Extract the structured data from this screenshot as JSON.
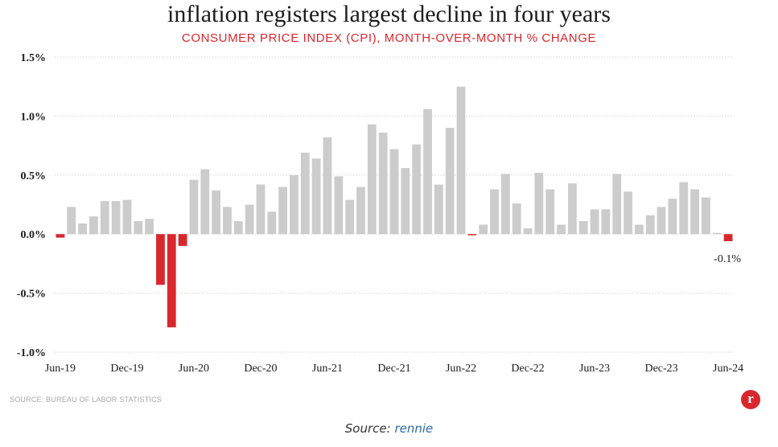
{
  "chart_data": {
    "type": "bar",
    "title": "inflation registers largest decline in four years",
    "subtitle": "CONSUMER PRICE INDEX (CPI), MONTH-OVER-MONTH % CHANGE",
    "xlabel": "",
    "ylabel": "",
    "ylim": [
      -1.0,
      1.5
    ],
    "y_ticks": [
      1.5,
      1.0,
      0.5,
      0.0,
      -0.5,
      -1.0
    ],
    "y_tick_labels": [
      "1.5%",
      "1.0%",
      "0.5%",
      "0.0%",
      "-0.5%",
      "-1.0%"
    ],
    "x_tick_labels": [
      "Jun-19",
      "Dec-19",
      "Jun-20",
      "Dec-20",
      "Jun-21",
      "Dec-21",
      "Jun-22",
      "Dec-22",
      "Jun-23",
      "Dec-23",
      "Jun-24"
    ],
    "grid": true,
    "negative_color": "#d9272e",
    "positive_color": "#cccccc",
    "categories": [
      "Jun-19",
      "Jul-19",
      "Aug-19",
      "Sep-19",
      "Oct-19",
      "Nov-19",
      "Dec-19",
      "Jan-20",
      "Feb-20",
      "Mar-20",
      "Apr-20",
      "May-20",
      "Jun-20",
      "Jul-20",
      "Aug-20",
      "Sep-20",
      "Oct-20",
      "Nov-20",
      "Dec-20",
      "Jan-21",
      "Feb-21",
      "Mar-21",
      "Apr-21",
      "May-21",
      "Jun-21",
      "Jul-21",
      "Aug-21",
      "Sep-21",
      "Oct-21",
      "Nov-21",
      "Dec-21",
      "Jan-22",
      "Feb-22",
      "Mar-22",
      "Apr-22",
      "May-22",
      "Jun-22",
      "Jul-22",
      "Aug-22",
      "Sep-22",
      "Oct-22",
      "Nov-22",
      "Dec-22",
      "Jan-23",
      "Feb-23",
      "Mar-23",
      "Apr-23",
      "May-23",
      "Jun-23",
      "Jul-23",
      "Aug-23",
      "Sep-23",
      "Oct-23",
      "Nov-23",
      "Dec-23",
      "Jan-24",
      "Feb-24",
      "Mar-24",
      "Apr-24",
      "May-24",
      "Jun-24"
    ],
    "values": [
      -0.03,
      0.23,
      0.09,
      0.15,
      0.28,
      0.28,
      0.29,
      0.11,
      0.13,
      -0.43,
      -0.79,
      -0.1,
      0.46,
      0.55,
      0.37,
      0.23,
      0.11,
      0.25,
      0.42,
      0.19,
      0.4,
      0.5,
      0.69,
      0.64,
      0.82,
      0.49,
      0.29,
      0.4,
      0.93,
      0.86,
      0.72,
      0.56,
      0.76,
      1.06,
      0.42,
      0.9,
      1.25,
      -0.01,
      0.08,
      0.38,
      0.51,
      0.26,
      0.05,
      0.52,
      0.38,
      0.08,
      0.43,
      0.11,
      0.21,
      0.21,
      0.51,
      0.36,
      0.08,
      0.16,
      0.23,
      0.3,
      0.44,
      0.38,
      0.31,
      0.01,
      -0.06
    ],
    "annotation": "-0.1%",
    "source_note": "SOURCE: BUREAU OF LABOR STATISTICS"
  },
  "logo_text": "r",
  "credit": {
    "label": "Source:",
    "link": "rennie"
  }
}
